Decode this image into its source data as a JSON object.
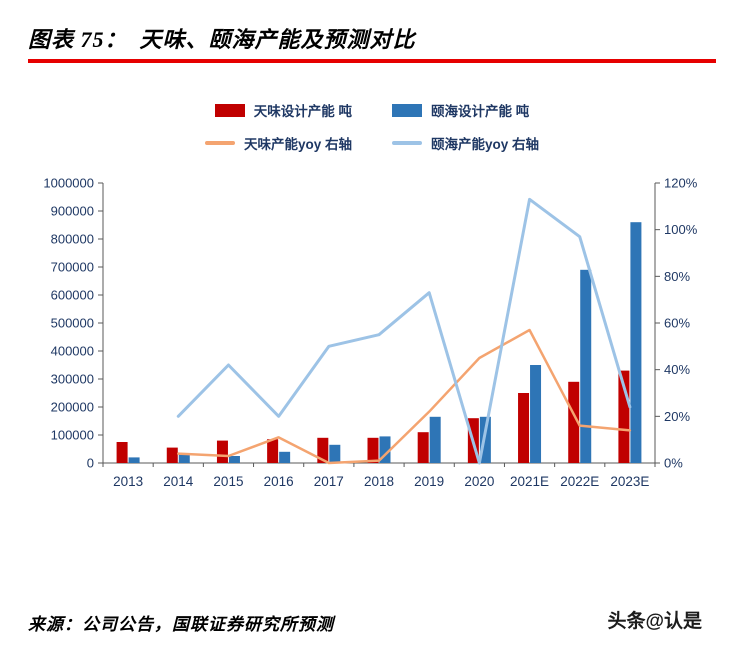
{
  "header": {
    "title": "图表 75：　天味、颐海产能及预测对比"
  },
  "legend": {
    "items": [
      {
        "label": "天味设计产能 吨",
        "type": "bar",
        "color": "#C00000"
      },
      {
        "label": "颐海设计产能 吨",
        "type": "bar",
        "color": "#2E75B6"
      },
      {
        "label": "天味产能yoy 右轴",
        "type": "line",
        "color": "#F4A470"
      },
      {
        "label": "颐海产能yoy 右轴",
        "type": "line",
        "color": "#9DC3E6"
      }
    ]
  },
  "chart_data": {
    "type": "combo-bar-line",
    "title": "天味、颐海产能及预测对比",
    "categories": [
      "2013",
      "2014",
      "2015",
      "2016",
      "2017",
      "2018",
      "2019",
      "2020",
      "2021E",
      "2022E",
      "2023E"
    ],
    "bar_series": [
      {
        "name": "天味设计产能 吨",
        "axis": "left",
        "color": "#C00000",
        "values": [
          75000,
          55000,
          80000,
          85000,
          90000,
          90000,
          110000,
          160000,
          250000,
          290000,
          330000
        ]
      },
      {
        "name": "颐海设计产能 吨",
        "axis": "left",
        "color": "#2E75B6",
        "values": [
          20000,
          30000,
          25000,
          40000,
          65000,
          95000,
          165000,
          165000,
          350000,
          690000,
          860000
        ]
      }
    ],
    "line_series": [
      {
        "name": "天味产能yoy 右轴",
        "axis": "right",
        "color": "#F4A470",
        "values": [
          null,
          4,
          3,
          11,
          0,
          1,
          22,
          45,
          57,
          16,
          14
        ]
      },
      {
        "name": "颐海产能yoy 右轴",
        "axis": "right",
        "color": "#9DC3E6",
        "values": [
          null,
          20,
          42,
          20,
          50,
          55,
          73,
          0,
          113,
          97,
          24
        ]
      }
    ],
    "left_axis": {
      "min": 0,
      "max": 1000000,
      "step": 100000,
      "labels": [
        "0",
        "100000",
        "200000",
        "300000",
        "400000",
        "500000",
        "600000",
        "700000",
        "800000",
        "900000",
        "1000000"
      ]
    },
    "right_axis": {
      "min": 0,
      "max": 120,
      "step": 20,
      "unit": "%",
      "labels": [
        "0%",
        "20%",
        "40%",
        "60%",
        "80%",
        "100%",
        "120%"
      ]
    },
    "legend_position": "top",
    "grid": false
  },
  "footer": {
    "source": "来源：公司公告，国联证券研究所预测",
    "watermark": "头条@认是"
  },
  "colors": {
    "title_rule": "#E60000",
    "axis_text": "#1F3864",
    "axis_line": "#595959",
    "bar_tianwei": "#C00000",
    "bar_yihai": "#2E75B6",
    "line_tianwei": "#F4A470",
    "line_yihai": "#9DC3E6"
  }
}
